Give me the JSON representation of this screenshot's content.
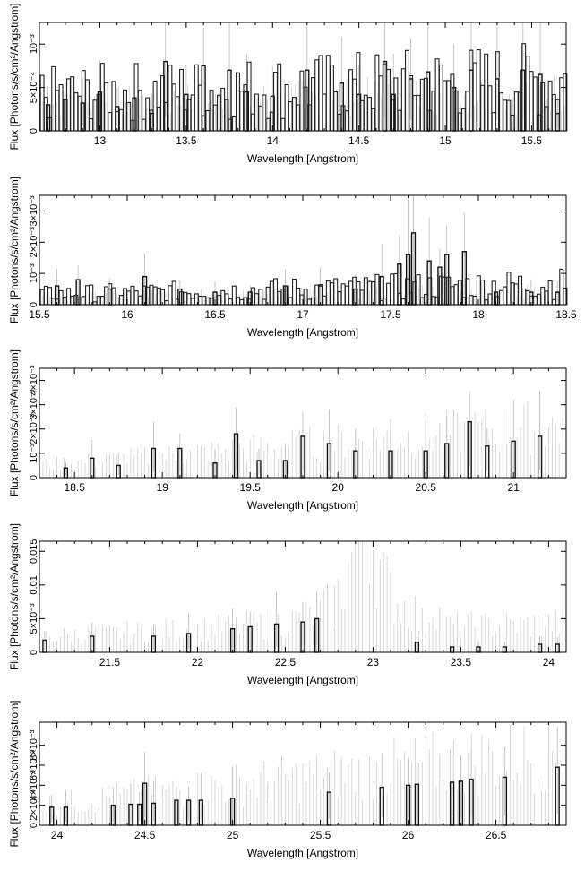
{
  "chart_data": [
    {
      "type": "line",
      "xlabel": "Wavelength [Angstrom]",
      "ylabel": "Flux [Photons/s/cm²/Angstrom]",
      "xlim": [
        12.65,
        15.7
      ],
      "ylim": [
        0,
        0.00125
      ],
      "xticks": [
        13,
        13.5,
        14,
        14.5,
        15,
        15.5
      ],
      "xticklabels": [
        "13",
        "13.5",
        "14",
        "14.5",
        "15",
        "15.5"
      ],
      "yticks": [
        0,
        0.0005,
        0.001
      ],
      "yticklabels": [
        "0",
        "5×10⁻⁴",
        "10⁻³"
      ],
      "bin_width": 0.02,
      "continuum": [
        0.00025,
        0.00035
      ],
      "series": [
        {
          "x": [
            12.7,
            12.8,
            12.9,
            13.0,
            13.1,
            13.2,
            13.3,
            13.38,
            13.5,
            13.6,
            13.75,
            13.85,
            14.0,
            14.2,
            14.4,
            14.5,
            14.65,
            14.7,
            14.8,
            14.9,
            15.05,
            15.15,
            15.3,
            15.45,
            15.55,
            15.65
          ],
          "values": [
            0.0003,
            0.00036,
            0.00032,
            0.00045,
            0.00028,
            0.00038,
            0.0002,
            0.0008,
            0.00042,
            0.00075,
            0.0007,
            0.00045,
            0.0004,
            0.0007,
            0.00055,
            0.00042,
            0.0008,
            0.00042,
            0.0006,
            0.00068,
            0.0005,
            0.0007,
            0.0006,
            0.0007,
            0.00065,
            0.0002
          ]
        }
      ]
    },
    {
      "type": "line",
      "xlabel": "Wavelength [Angstrom]",
      "ylabel": "Flux [Photons/s/cm²/Angstrom]",
      "xlim": [
        15.5,
        18.5
      ],
      "ylim": [
        0,
        0.0035
      ],
      "xticks": [
        15.5,
        16,
        16.5,
        17,
        17.5,
        18,
        18.5
      ],
      "xticklabels": [
        "15.5",
        "16",
        "16.5",
        "17",
        "17.5",
        "18",
        "18.5"
      ],
      "yticks": [
        0,
        0.001,
        0.002,
        0.003
      ],
      "yticklabels": [
        "0",
        "10⁻³",
        "2×10⁻³",
        "3×10⁻³"
      ],
      "bin_width": 0.02,
      "continuum": [
        0.0002,
        0.0004
      ],
      "series": [
        {
          "x": [
            15.6,
            15.72,
            15.9,
            16.1,
            16.3,
            16.5,
            16.7,
            16.9,
            17.1,
            17.3,
            17.45,
            17.55,
            17.6,
            17.63,
            17.72,
            17.78,
            17.82,
            17.92,
            18.1,
            18.3,
            18.45
          ],
          "values": [
            0.0006,
            0.0008,
            0.0005,
            0.0009,
            0.0005,
            0.0004,
            0.0004,
            0.0006,
            0.0006,
            0.0005,
            0.0009,
            0.0013,
            0.0016,
            0.0023,
            0.0014,
            0.0012,
            0.0016,
            0.0017,
            0.0004,
            0.0004,
            0.0004
          ]
        }
      ]
    },
    {
      "type": "line",
      "xlabel": "Wavelength [Angstrom]",
      "ylabel": "Flux [Photons/s/cm²/Angstrom]",
      "xlim": [
        18.3,
        21.3
      ],
      "ylim": [
        0,
        0.0045
      ],
      "xticks": [
        18.5,
        19,
        19.5,
        20,
        20.5,
        21
      ],
      "xticklabels": [
        "18.5",
        "19",
        "19.5",
        "20",
        "20.5",
        "21"
      ],
      "yticks": [
        0,
        0.001,
        0.002,
        0.003,
        0.004
      ],
      "yticklabels": [
        "0",
        "10⁻³",
        "2×10⁻³",
        "3×10⁻³",
        "4×10⁻³"
      ],
      "bin_width": 0.02,
      "continuum": [
        0.0004,
        0.0017
      ],
      "series": [
        {
          "x": [
            18.45,
            18.6,
            18.75,
            18.95,
            19.1,
            19.3,
            19.42,
            19.55,
            19.7,
            19.8,
            19.95,
            20.1,
            20.3,
            20.5,
            20.62,
            20.75,
            20.85,
            21.0,
            21.15
          ],
          "values": [
            0.0004,
            0.0008,
            0.0005,
            0.0012,
            0.0012,
            0.0006,
            0.0018,
            0.0007,
            0.0007,
            0.0017,
            0.0014,
            0.0011,
            0.0011,
            0.0011,
            0.0014,
            0.0023,
            0.0013,
            0.0015,
            0.0017
          ]
        }
      ]
    },
    {
      "type": "line",
      "xlabel": "Wavelength [Angstrom]",
      "ylabel": "Flux [Photons/s/cm²/Angstrom]",
      "xlim": [
        21.1,
        24.1
      ],
      "ylim": [
        0,
        0.0165
      ],
      "xticks": [
        21.5,
        22,
        22.5,
        23,
        23.5,
        24
      ],
      "xticklabels": [
        "21.5",
        "22",
        "22.5",
        "23",
        "23.5",
        "24"
      ],
      "yticks": [
        0,
        0.005,
        0.01,
        0.015
      ],
      "yticklabels": [
        "0",
        "5×10⁻³",
        "0.01",
        "0.015"
      ],
      "bin_width": 0.02,
      "continuum": [
        0.0018,
        0.0045
      ],
      "series": [
        {
          "x": [
            21.13,
            21.4,
            21.75,
            21.95,
            22.2,
            22.3,
            22.45,
            22.6,
            22.68,
            23.25,
            23.45,
            23.6,
            23.75,
            23.95,
            24.05
          ],
          "values": [
            0.0018,
            0.0024,
            0.0024,
            0.0028,
            0.0035,
            0.0038,
            0.0042,
            0.0045,
            0.005,
            0.0015,
            0.0008,
            0.0008,
            0.0008,
            0.0012,
            0.0012
          ]
        }
      ]
    },
    {
      "type": "line",
      "xlabel": "Wavelength [Angstrom]",
      "ylabel": "Flux [Photons/s/cm²/Angstrom]",
      "xlim": [
        23.9,
        26.9
      ],
      "ylim": [
        0,
        0.0103
      ],
      "xticks": [
        24,
        24.5,
        25,
        25.5,
        26,
        26.5
      ],
      "xticklabels": [
        "24",
        "24.5",
        "25",
        "25.5",
        "26",
        "26.5"
      ],
      "yticks": [
        0,
        0.002,
        0.004,
        0.006,
        0.008
      ],
      "yticklabels": [
        "0",
        "2×10⁻³",
        "4×10⁻³",
        "6×10⁻³",
        "8×10⁻³"
      ],
      "bin_width": 0.02,
      "continuum": [
        0.0016,
        0.0058
      ],
      "series": [
        {
          "x": [
            23.97,
            24.05,
            24.32,
            24.42,
            24.47,
            24.5,
            24.55,
            24.68,
            24.75,
            24.82,
            25.0,
            25.55,
            25.85,
            26.0,
            26.05,
            26.25,
            26.3,
            26.36,
            26.55,
            26.85
          ],
          "values": [
            0.0018,
            0.0018,
            0.002,
            0.0021,
            0.0021,
            0.0042,
            0.0022,
            0.0025,
            0.0025,
            0.0025,
            0.0027,
            0.0033,
            0.0038,
            0.004,
            0.0041,
            0.0043,
            0.0044,
            0.0046,
            0.0048,
            0.0058
          ]
        }
      ]
    }
  ]
}
